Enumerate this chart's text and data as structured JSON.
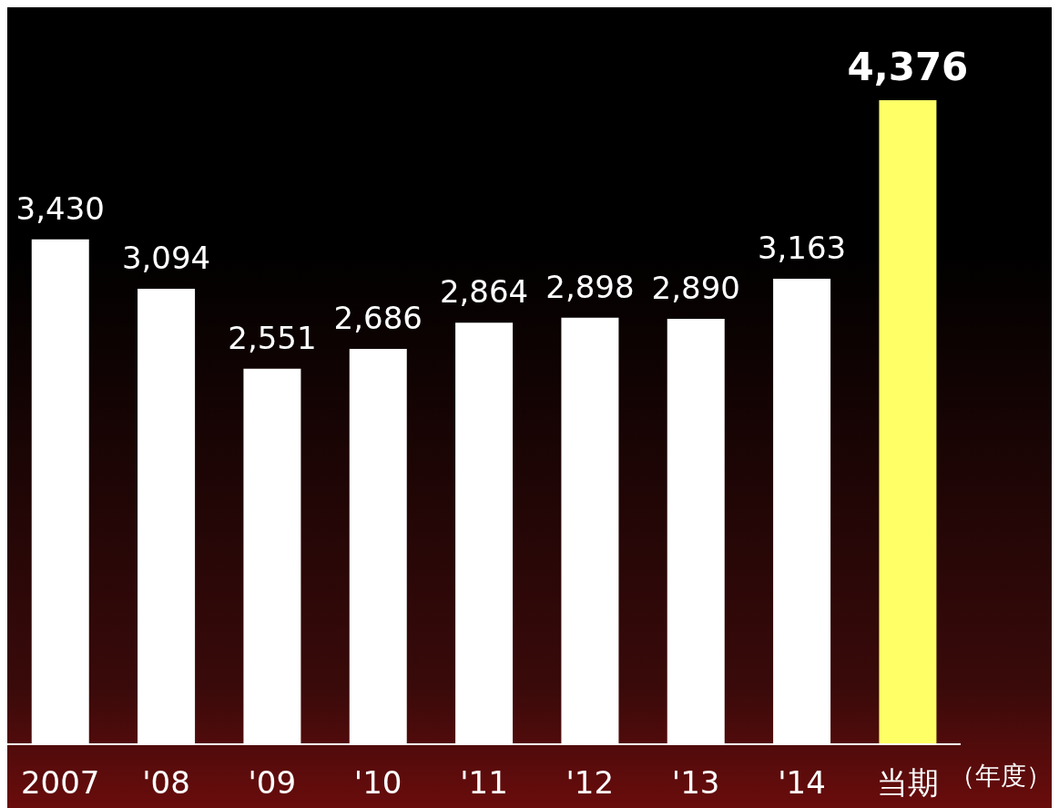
{
  "chart_data": {
    "type": "bar",
    "xlabel": "（年度）",
    "categories": [
      "2007",
      "'08",
      "'09",
      "'10",
      "'11",
      "'12",
      "'13",
      "'14",
      "当期"
    ],
    "values": [
      3430,
      3094,
      2551,
      2686,
      2864,
      2898,
      2890,
      3163,
      4376
    ],
    "colors": [
      "#ffffff",
      "#ffffff",
      "#ffffff",
      "#ffffff",
      "#ffffff",
      "#ffffff",
      "#ffffff",
      "#ffffff",
      "#ffff66"
    ],
    "value_labels": [
      "3,430",
      "3,094",
      "2,551",
      "2,686",
      "2,864",
      "2,898",
      "2,890",
      "3,163",
      "4,376"
    ],
    "grid": false,
    "legend": false
  }
}
